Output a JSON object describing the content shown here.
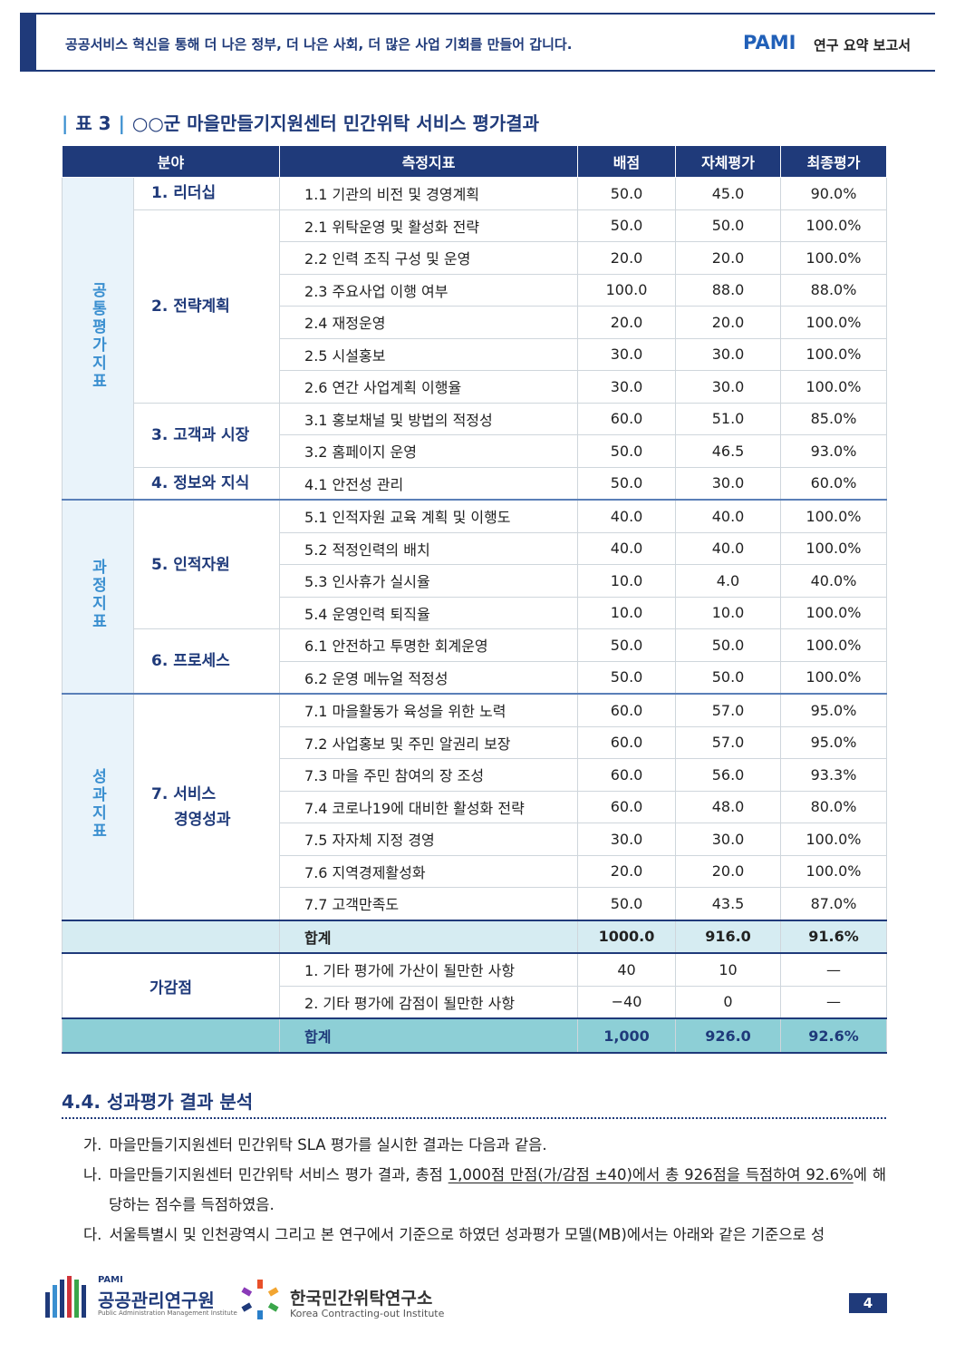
{
  "header": {
    "tagline": "공공서비스 혁신을 통해 더 나은 정부, 더 나은 사회, 더 많은 사업 기회를 만들어 갑니다.",
    "brand": "PAMI",
    "report": "연구 요약 보고서"
  },
  "table": {
    "label": "표 3",
    "title": "○○군 마을만들기지원센터 민간위탁 서비스 평가결과",
    "columns": [
      "분야",
      "측정지표",
      "배점",
      "자체평가",
      "최종평가"
    ],
    "sections": [
      {
        "name": "공통평가지표",
        "areas": [
          {
            "name": "1. 리더십",
            "rows": [
              [
                "1.1 기관의 비전 및 경영계획",
                "50.0",
                "45.0",
                "90.0%"
              ]
            ]
          },
          {
            "name": "2. 전략계획",
            "rows": [
              [
                "2.1 위탁운영 및 활성화 전략",
                "50.0",
                "50.0",
                "100.0%"
              ],
              [
                "2.2 인력 조직 구성 및 운영",
                "20.0",
                "20.0",
                "100.0%"
              ],
              [
                "2.3 주요사업 이행 여부",
                "100.0",
                "88.0",
                "88.0%"
              ],
              [
                "2.4 재정운영",
                "20.0",
                "20.0",
                "100.0%"
              ],
              [
                "2.5 시설홍보",
                "30.0",
                "30.0",
                "100.0%"
              ],
              [
                "2.6 연간 사업계획 이행율",
                "30.0",
                "30.0",
                "100.0%"
              ]
            ]
          },
          {
            "name": "3. 고객과 시장",
            "rows": [
              [
                "3.1 홍보채널 및 방법의 적정성",
                "60.0",
                "51.0",
                "85.0%"
              ],
              [
                "3.2 홈페이지 운영",
                "50.0",
                "46.5",
                "93.0%"
              ]
            ]
          },
          {
            "name": "4. 정보와 지식",
            "rows": [
              [
                "4.1 안전성 관리",
                "50.0",
                "30.0",
                "60.0%"
              ]
            ]
          }
        ]
      },
      {
        "name": "과정지표",
        "areas": [
          {
            "name": "5. 인적자원",
            "rows": [
              [
                "5.1 인적자원 교육 계획 및 이행도",
                "40.0",
                "40.0",
                "100.0%"
              ],
              [
                "5.2 적정인력의 배치",
                "40.0",
                "40.0",
                "100.0%"
              ],
              [
                "5.3 인사휴가 실시율",
                "10.0",
                "4.0",
                "40.0%"
              ],
              [
                "5.4 운영인력 퇴직율",
                "10.0",
                "10.0",
                "100.0%"
              ]
            ]
          },
          {
            "name": "6. 프로세스",
            "rows": [
              [
                "6.1 안전하고 투명한 회계운영",
                "50.0",
                "50.0",
                "100.0%"
              ],
              [
                "6.2 운영 메뉴얼 적정성",
                "50.0",
                "50.0",
                "100.0%"
              ]
            ]
          }
        ]
      },
      {
        "name": "성과지표",
        "areas": [
          {
            "name": [
              "7. 서비스",
              "경영성과"
            ],
            "rows": [
              [
                "7.1 마을활동가 육성을 위한 노력",
                "60.0",
                "57.0",
                "95.0%"
              ],
              [
                "7.2 사업홍보 및 주민 알권리 보장",
                "60.0",
                "57.0",
                "95.0%"
              ],
              [
                "7.3 마을 주민 참여의 장 조성",
                "60.0",
                "56.0",
                "93.3%"
              ],
              [
                "7.4 코로나19에 대비한 활성화 전략",
                "60.0",
                "48.0",
                "80.0%"
              ],
              [
                "7.5 자자체 지정 경영",
                "30.0",
                "30.0",
                "100.0%"
              ],
              [
                "7.6 지역경제활성화",
                "20.0",
                "20.0",
                "100.0%"
              ],
              [
                "7.7 고객만족도",
                "50.0",
                "43.5",
                "87.0%"
              ]
            ]
          }
        ]
      }
    ],
    "total1": {
      "label": "합계",
      "values": [
        "1000.0",
        "916.0",
        "91.6%"
      ]
    },
    "adjust": {
      "name": "가감점",
      "rows": [
        [
          "1. 기타 평가에 가산이 될만한 사항",
          "40",
          "10",
          "—"
        ],
        [
          "2. 기타 평가에 감점이 될만한 사항",
          "−40",
          "0",
          "—"
        ]
      ]
    },
    "total2": {
      "label": "합계",
      "values": [
        "1,000",
        "926.0",
        "92.6%"
      ]
    }
  },
  "section": {
    "heading": "4.4. 성과평가 결과 분석",
    "paragraphs": [
      {
        "marker": "가.",
        "parts": [
          "마을만들기지원센터 민간위탁 SLA 평가를 실시한 결과는 다음과 같음."
        ]
      },
      {
        "marker": "나.",
        "parts": [
          "마을만들기지원센터 민간위탁 서비스 평가 결과, 총점 ",
          "1,000점 만점(가/감점 ±40)에서 총 926점을 득점하여 92.6%",
          "에 해당하는 점수를 득점하였음."
        ]
      },
      {
        "marker": "다.",
        "parts": [
          "서울특별시 및 인천광역시 그리고 본 연구에서 기준으로 하였던 성과평가 모델(MB)에서는 아래와 같은 기준으로 성"
        ]
      }
    ]
  },
  "footer": {
    "logo1": {
      "small": "PAMI",
      "name": "공공관리연구원",
      "sub": "Public Administration Management Institute"
    },
    "logo2": {
      "name": "한국민간위탁연구소",
      "sub": "Korea Contracting-out Institute"
    },
    "page": "4"
  }
}
